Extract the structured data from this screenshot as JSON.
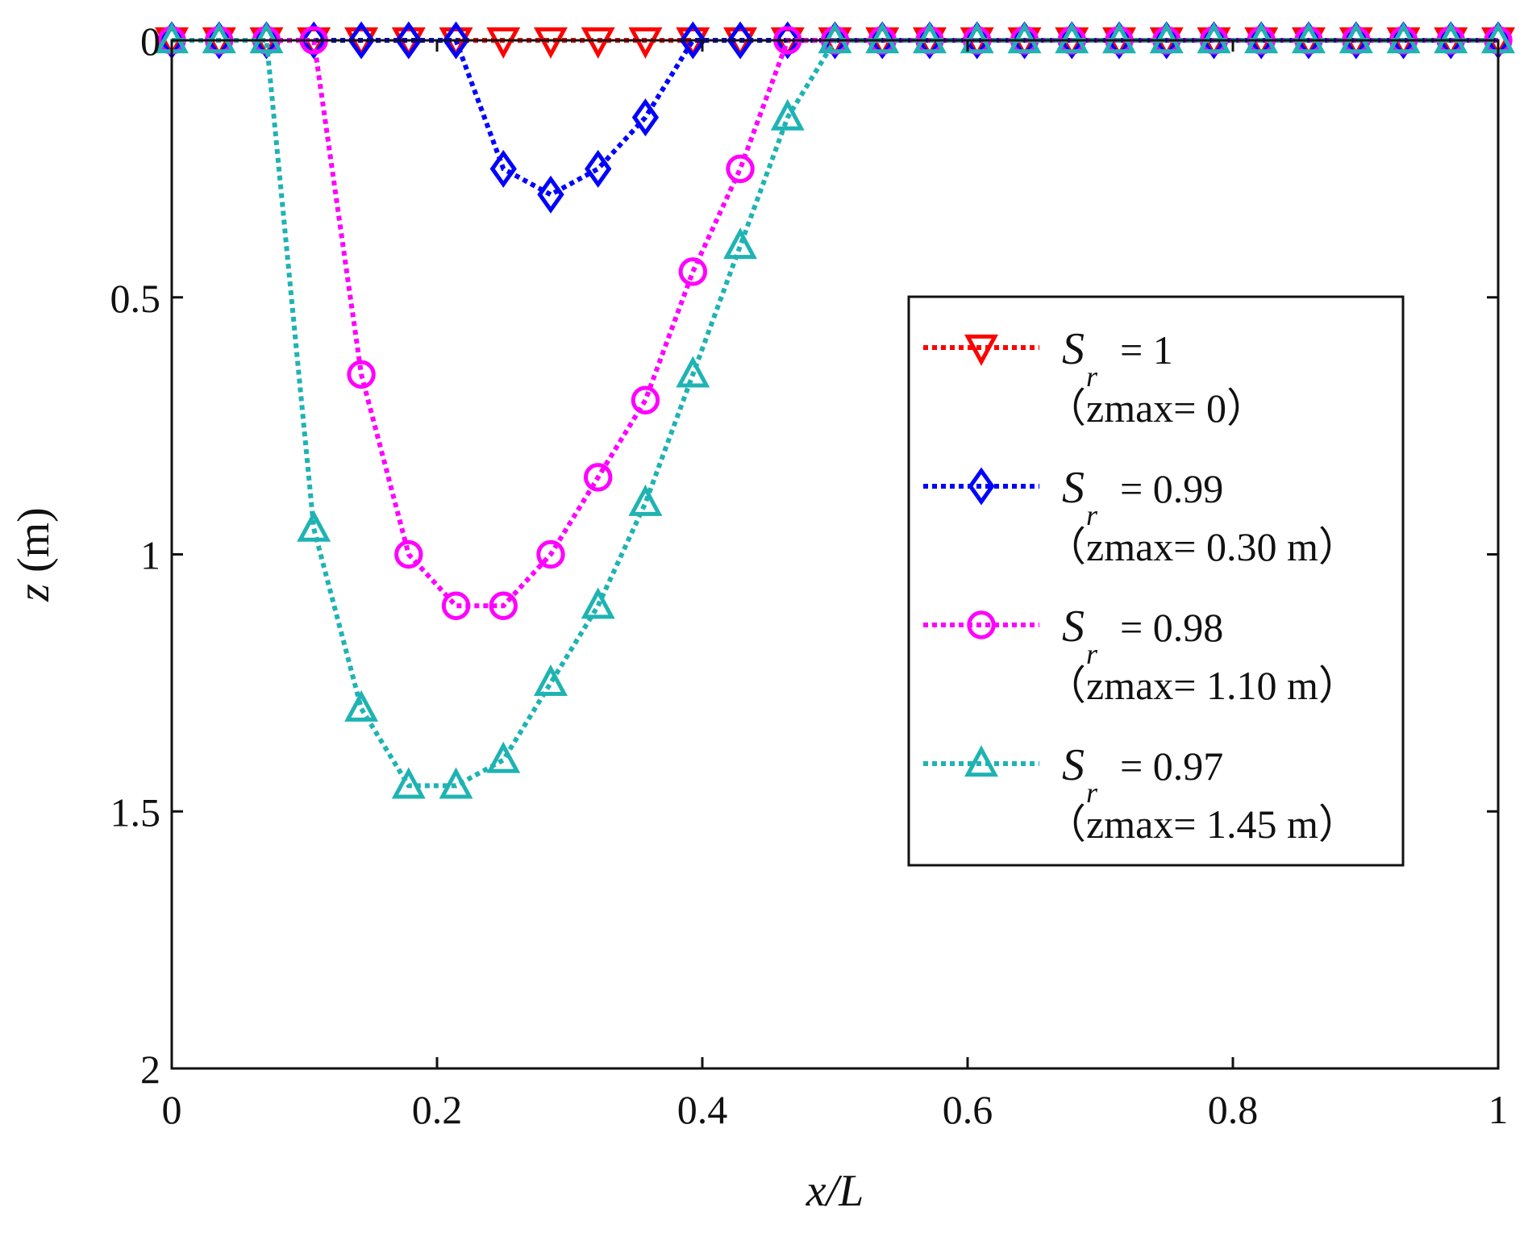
{
  "chart_data": {
    "type": "line",
    "title": "",
    "xlabel": "x/L",
    "ylabel": "z (m)",
    "xlim": [
      0,
      1
    ],
    "ylim": [
      0,
      2
    ],
    "y_inverted": true,
    "xticks": [
      "0",
      "0.2",
      "0.4",
      "0.6",
      "0.8",
      "1"
    ],
    "yticks": [
      "0",
      "0.5",
      "1",
      "1.5",
      "2"
    ],
    "legend_position": "center-right",
    "series": [
      {
        "name": "Sr = 1",
        "symbol": "S",
        "subscript": "r",
        "value_text": "= 1",
        "zmax_text": "（zmax= 0）",
        "color": "#ff0000",
        "marker": "triangle-down",
        "x": [
          0.0,
          0.0357,
          0.0714,
          0.1071,
          0.1429,
          0.1786,
          0.2143,
          0.25,
          0.2857,
          0.3214,
          0.3571,
          0.3929,
          0.4286,
          0.4643,
          0.5,
          0.5357,
          0.5714,
          0.6071,
          0.6429,
          0.6786,
          0.7143,
          0.75,
          0.7857,
          0.8214,
          0.8571,
          0.8929,
          0.9286,
          0.9643,
          1.0
        ],
        "y": [
          0,
          0,
          0,
          0,
          0,
          0,
          0,
          0,
          0,
          0,
          0,
          0,
          0,
          0,
          0,
          0,
          0,
          0,
          0,
          0,
          0,
          0,
          0,
          0,
          0,
          0,
          0,
          0,
          0
        ]
      },
      {
        "name": "Sr = 0.99",
        "symbol": "S",
        "subscript": "r",
        "value_text": "= 0.99",
        "zmax_text": "（zmax= 0.30 m）",
        "color": "#0000ff",
        "marker": "diamond",
        "x": [
          0.0,
          0.0357,
          0.0714,
          0.1071,
          0.1429,
          0.1786,
          0.2143,
          0.25,
          0.2857,
          0.3214,
          0.3571,
          0.3929,
          0.4286,
          0.4643,
          0.5,
          0.5357,
          0.5714,
          0.6071,
          0.6429,
          0.6786,
          0.7143,
          0.75,
          0.7857,
          0.8214,
          0.8571,
          0.8929,
          0.9286,
          0.9643,
          1.0
        ],
        "y": [
          0,
          0,
          0,
          0,
          0,
          0,
          0,
          0.25,
          0.3,
          0.25,
          0.15,
          0,
          0,
          0,
          0,
          0,
          0,
          0,
          0,
          0,
          0,
          0,
          0,
          0,
          0,
          0,
          0,
          0,
          0
        ]
      },
      {
        "name": "Sr = 0.98",
        "symbol": "S",
        "subscript": "r",
        "value_text": "= 0.98",
        "zmax_text": "（zmax= 1.10 m）",
        "color": "#ff00ff",
        "marker": "circle",
        "x": [
          0.0,
          0.0357,
          0.0714,
          0.1071,
          0.1429,
          0.1786,
          0.2143,
          0.25,
          0.2857,
          0.3214,
          0.3571,
          0.3929,
          0.4286,
          0.4643,
          0.5,
          0.5357,
          0.5714,
          0.6071,
          0.6429,
          0.6786,
          0.7143,
          0.75,
          0.7857,
          0.8214,
          0.8571,
          0.8929,
          0.9286,
          0.9643,
          1.0
        ],
        "y": [
          0,
          0,
          0,
          0,
          0.65,
          1.0,
          1.1,
          1.1,
          1.0,
          0.85,
          0.7,
          0.45,
          0.25,
          0,
          0,
          0,
          0,
          0,
          0,
          0,
          0,
          0,
          0,
          0,
          0,
          0,
          0,
          0,
          0
        ]
      },
      {
        "name": "Sr = 0.97",
        "symbol": "S",
        "subscript": "r",
        "value_text": "= 0.97",
        "zmax_text": "（zmax= 1.45 m）",
        "color": "#1fb3b3",
        "marker": "triangle-up",
        "x": [
          0.0,
          0.0357,
          0.0714,
          0.1071,
          0.1429,
          0.1786,
          0.2143,
          0.25,
          0.2857,
          0.3214,
          0.3571,
          0.3929,
          0.4286,
          0.4643,
          0.5,
          0.5357,
          0.5714,
          0.6071,
          0.6429,
          0.6786,
          0.7143,
          0.75,
          0.7857,
          0.8214,
          0.8571,
          0.8929,
          0.9286,
          0.9643,
          1.0
        ],
        "y": [
          0,
          0,
          0,
          0.95,
          1.3,
          1.45,
          1.45,
          1.4,
          1.25,
          1.1,
          0.9,
          0.65,
          0.4,
          0.15,
          0,
          0,
          0,
          0,
          0,
          0,
          0,
          0,
          0,
          0,
          0,
          0,
          0,
          0,
          0
        ]
      }
    ]
  }
}
